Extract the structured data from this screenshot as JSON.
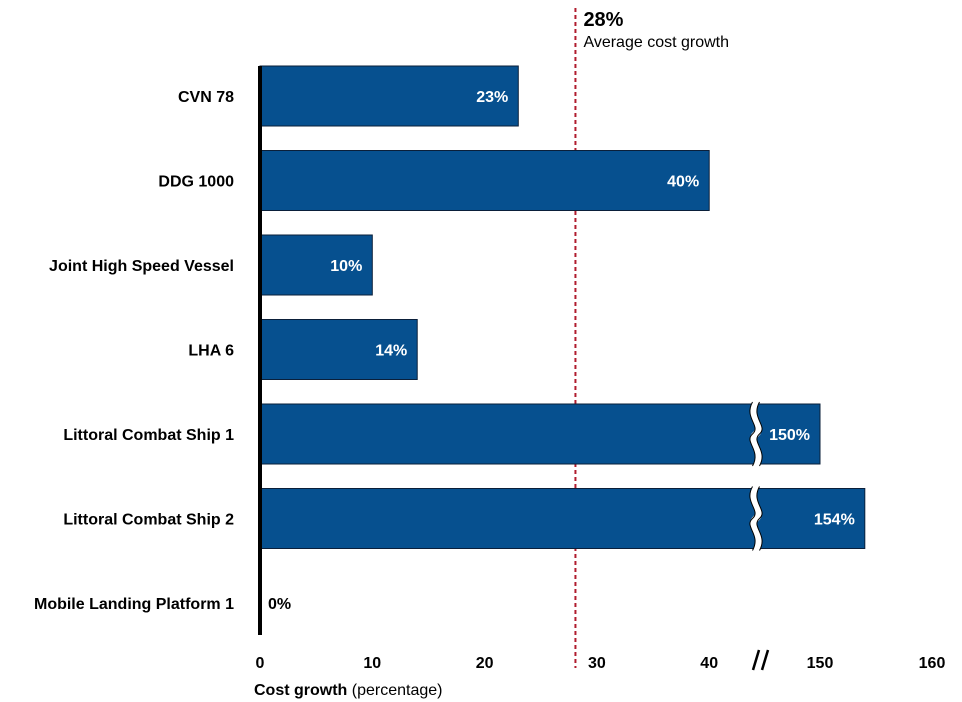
{
  "chart_data": {
    "type": "bar",
    "orientation": "horizontal",
    "categories": [
      "CVN 78",
      "DDG 1000",
      "Joint High Speed Vessel",
      "LHA 6",
      "Littoral Combat Ship 1",
      "Littoral Combat Ship 2",
      "Mobile Landing Platform 1"
    ],
    "values": [
      23,
      40,
      10,
      14,
      150,
      154,
      0
    ],
    "data_labels": [
      "23%",
      "40%",
      "10%",
      "14%",
      "150%",
      "154%",
      "0%"
    ],
    "axis_break": {
      "from": 40,
      "to": 150
    },
    "xlabel_bold": "Cost growth",
    "xlabel_rest": " (percentage)",
    "xticks": [
      "0",
      "10",
      "20",
      "30",
      "40",
      "150",
      "160"
    ],
    "reference_line": {
      "value": 28,
      "label_value": "28%",
      "label_text": "Average cost growth"
    },
    "bar_color": "#06508f",
    "reference_color": "#b01c2e"
  }
}
